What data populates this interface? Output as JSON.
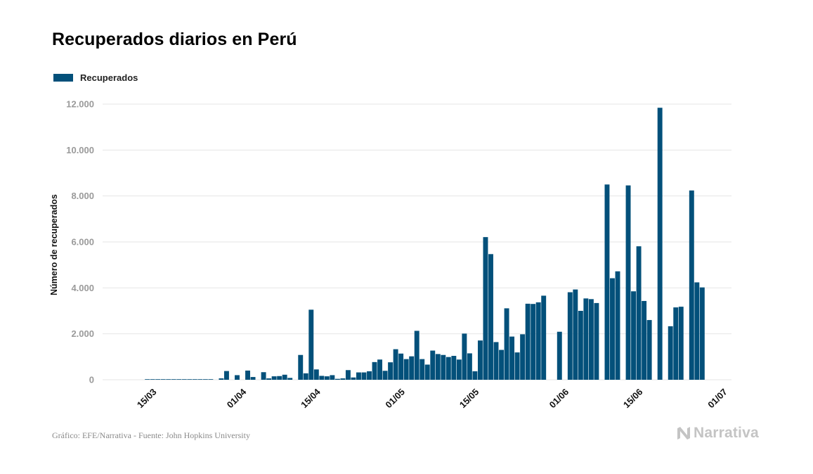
{
  "title": "Recuperados diarios en Perú",
  "footer": "Gráfico: EFE/Narrativa - Fuente: John Hopkins University",
  "brand": "Narrativa",
  "colors": {
    "bar": "#03507a",
    "grid": "#e6e6e6",
    "brand": "#c4c4c4"
  },
  "chart_data": {
    "type": "bar",
    "title": "Recuperados diarios en Perú",
    "xlabel": "",
    "ylabel": "Número de recuperados",
    "legend": {
      "placement": "top-left",
      "entries": [
        "Recuperados"
      ]
    },
    "grid": true,
    "ylim": [
      0,
      12000
    ],
    "yticks": [
      0,
      2000,
      4000,
      6000,
      8000,
      10000,
      12000
    ],
    "ytick_labels": [
      "0",
      "2.000",
      "4.000",
      "6.000",
      "8.000",
      "10.000",
      "12.000"
    ],
    "xlim": [
      "2020-03-06",
      "2020-07-03"
    ],
    "xticks": [
      "2020-03-15",
      "2020-04-01",
      "2020-04-15",
      "2020-05-01",
      "2020-05-15",
      "2020-06-01",
      "2020-06-15",
      "2020-07-01"
    ],
    "xtick_labels": [
      "15/03",
      "01/04",
      "15/04",
      "01/05",
      "15/05",
      "01/06",
      "15/06",
      "01/07"
    ],
    "series": [
      {
        "name": "Recuperados",
        "dates": [
          "2020-03-06",
          "2020-03-07",
          "2020-03-08",
          "2020-03-09",
          "2020-03-10",
          "2020-03-11",
          "2020-03-12",
          "2020-03-13",
          "2020-03-14",
          "2020-03-15",
          "2020-03-16",
          "2020-03-17",
          "2020-03-18",
          "2020-03-19",
          "2020-03-20",
          "2020-03-21",
          "2020-03-22",
          "2020-03-23",
          "2020-03-24",
          "2020-03-25",
          "2020-03-26",
          "2020-03-27",
          "2020-03-28",
          "2020-03-29",
          "2020-03-30",
          "2020-03-31",
          "2020-04-01",
          "2020-04-02",
          "2020-04-03",
          "2020-04-04",
          "2020-04-05",
          "2020-04-06",
          "2020-04-07",
          "2020-04-08",
          "2020-04-09",
          "2020-04-10",
          "2020-04-11",
          "2020-04-12",
          "2020-04-13",
          "2020-04-14",
          "2020-04-15",
          "2020-04-16",
          "2020-04-17",
          "2020-04-18",
          "2020-04-19",
          "2020-04-20",
          "2020-04-21",
          "2020-04-22",
          "2020-04-23",
          "2020-04-24",
          "2020-04-25",
          "2020-04-26",
          "2020-04-27",
          "2020-04-28",
          "2020-04-29",
          "2020-04-30",
          "2020-05-01",
          "2020-05-02",
          "2020-05-03",
          "2020-05-04",
          "2020-05-05",
          "2020-05-06",
          "2020-05-07",
          "2020-05-08",
          "2020-05-09",
          "2020-05-10",
          "2020-05-11",
          "2020-05-12",
          "2020-05-13",
          "2020-05-14",
          "2020-05-15",
          "2020-05-16",
          "2020-05-17",
          "2020-05-18",
          "2020-05-19",
          "2020-05-20",
          "2020-05-21",
          "2020-05-22",
          "2020-05-23",
          "2020-05-24",
          "2020-05-25",
          "2020-05-26",
          "2020-05-27",
          "2020-05-28",
          "2020-05-29",
          "2020-05-30",
          "2020-05-31",
          "2020-06-01",
          "2020-06-02",
          "2020-06-03",
          "2020-06-04",
          "2020-06-05",
          "2020-06-06",
          "2020-06-07",
          "2020-06-08",
          "2020-06-09",
          "2020-06-10",
          "2020-06-11",
          "2020-06-12",
          "2020-06-13",
          "2020-06-14",
          "2020-06-15",
          "2020-06-16",
          "2020-06-17",
          "2020-06-18",
          "2020-06-19",
          "2020-06-20",
          "2020-06-21",
          "2020-06-22",
          "2020-06-23",
          "2020-06-24",
          "2020-06-25",
          "2020-06-26",
          "2020-06-27",
          "2020-06-28"
        ],
        "values": [
          0,
          0,
          0,
          0,
          0,
          0,
          0,
          0,
          5,
          5,
          5,
          5,
          5,
          5,
          5,
          5,
          5,
          5,
          10,
          10,
          5,
          0,
          60,
          380,
          0,
          200,
          0,
          400,
          120,
          0,
          330,
          60,
          150,
          160,
          220,
          80,
          0,
          1080,
          280,
          3050,
          450,
          170,
          150,
          200,
          40,
          60,
          420,
          100,
          320,
          320,
          370,
          770,
          880,
          390,
          760,
          1330,
          1140,
          900,
          1020,
          2130,
          900,
          660,
          1270,
          1120,
          1080,
          990,
          1040,
          880,
          2010,
          1150,
          370,
          1710,
          6210,
          5470,
          1640,
          1300,
          3110,
          1880,
          1190,
          1980,
          3310,
          3300,
          3370,
          3660,
          0,
          0,
          2090,
          0,
          3810,
          3930,
          3000,
          3540,
          3510,
          3340,
          0,
          8500,
          4420,
          4720,
          0,
          8460,
          3850,
          5810,
          3430,
          2600,
          0,
          11840,
          0,
          2330,
          3150,
          3180,
          0,
          8240,
          4240,
          4020,
          0
        ]
      }
    ]
  }
}
